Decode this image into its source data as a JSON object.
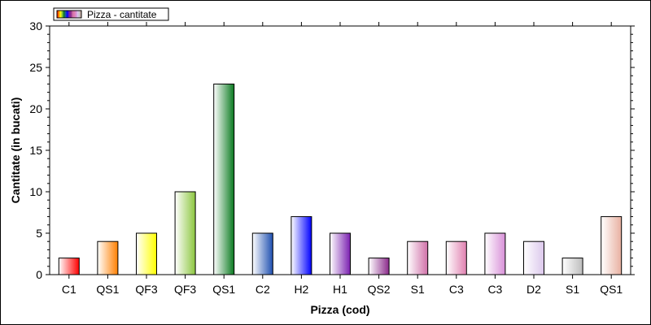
{
  "chart_data": {
    "type": "bar",
    "title": "",
    "xlabel": "Pizza (cod)",
    "ylabel": "Cantitate (in bucati)",
    "ylim": [
      0,
      30
    ],
    "yticks": [
      0,
      5,
      10,
      15,
      20,
      25,
      30
    ],
    "grid": false,
    "legend": {
      "placement": "top-left",
      "label": "Pizza - cantitate"
    },
    "categories": [
      "C1",
      "QS1",
      "QF3",
      "QF3",
      "QS1",
      "C2",
      "H2",
      "H1",
      "QS2",
      "S1",
      "C3",
      "C3",
      "D2",
      "S1",
      "QS1"
    ],
    "series": [
      {
        "name": "Pizza - cantitate",
        "values": [
          2,
          4,
          5,
          10,
          23,
          5,
          7,
          5,
          2,
          4,
          4,
          5,
          4,
          2,
          7
        ]
      }
    ],
    "bar_colors": [
      "#ff0000",
      "#ff7f00",
      "#ffff00",
      "#8cc63f",
      "#0a7a20",
      "#1e4fb0",
      "#0000ff",
      "#7a1fb0",
      "#8b2a8b",
      "#d070a8",
      "#e080b0",
      "#d890d8",
      "#dcc8ec",
      "#bdbdbd",
      "#e8b0a0"
    ]
  }
}
